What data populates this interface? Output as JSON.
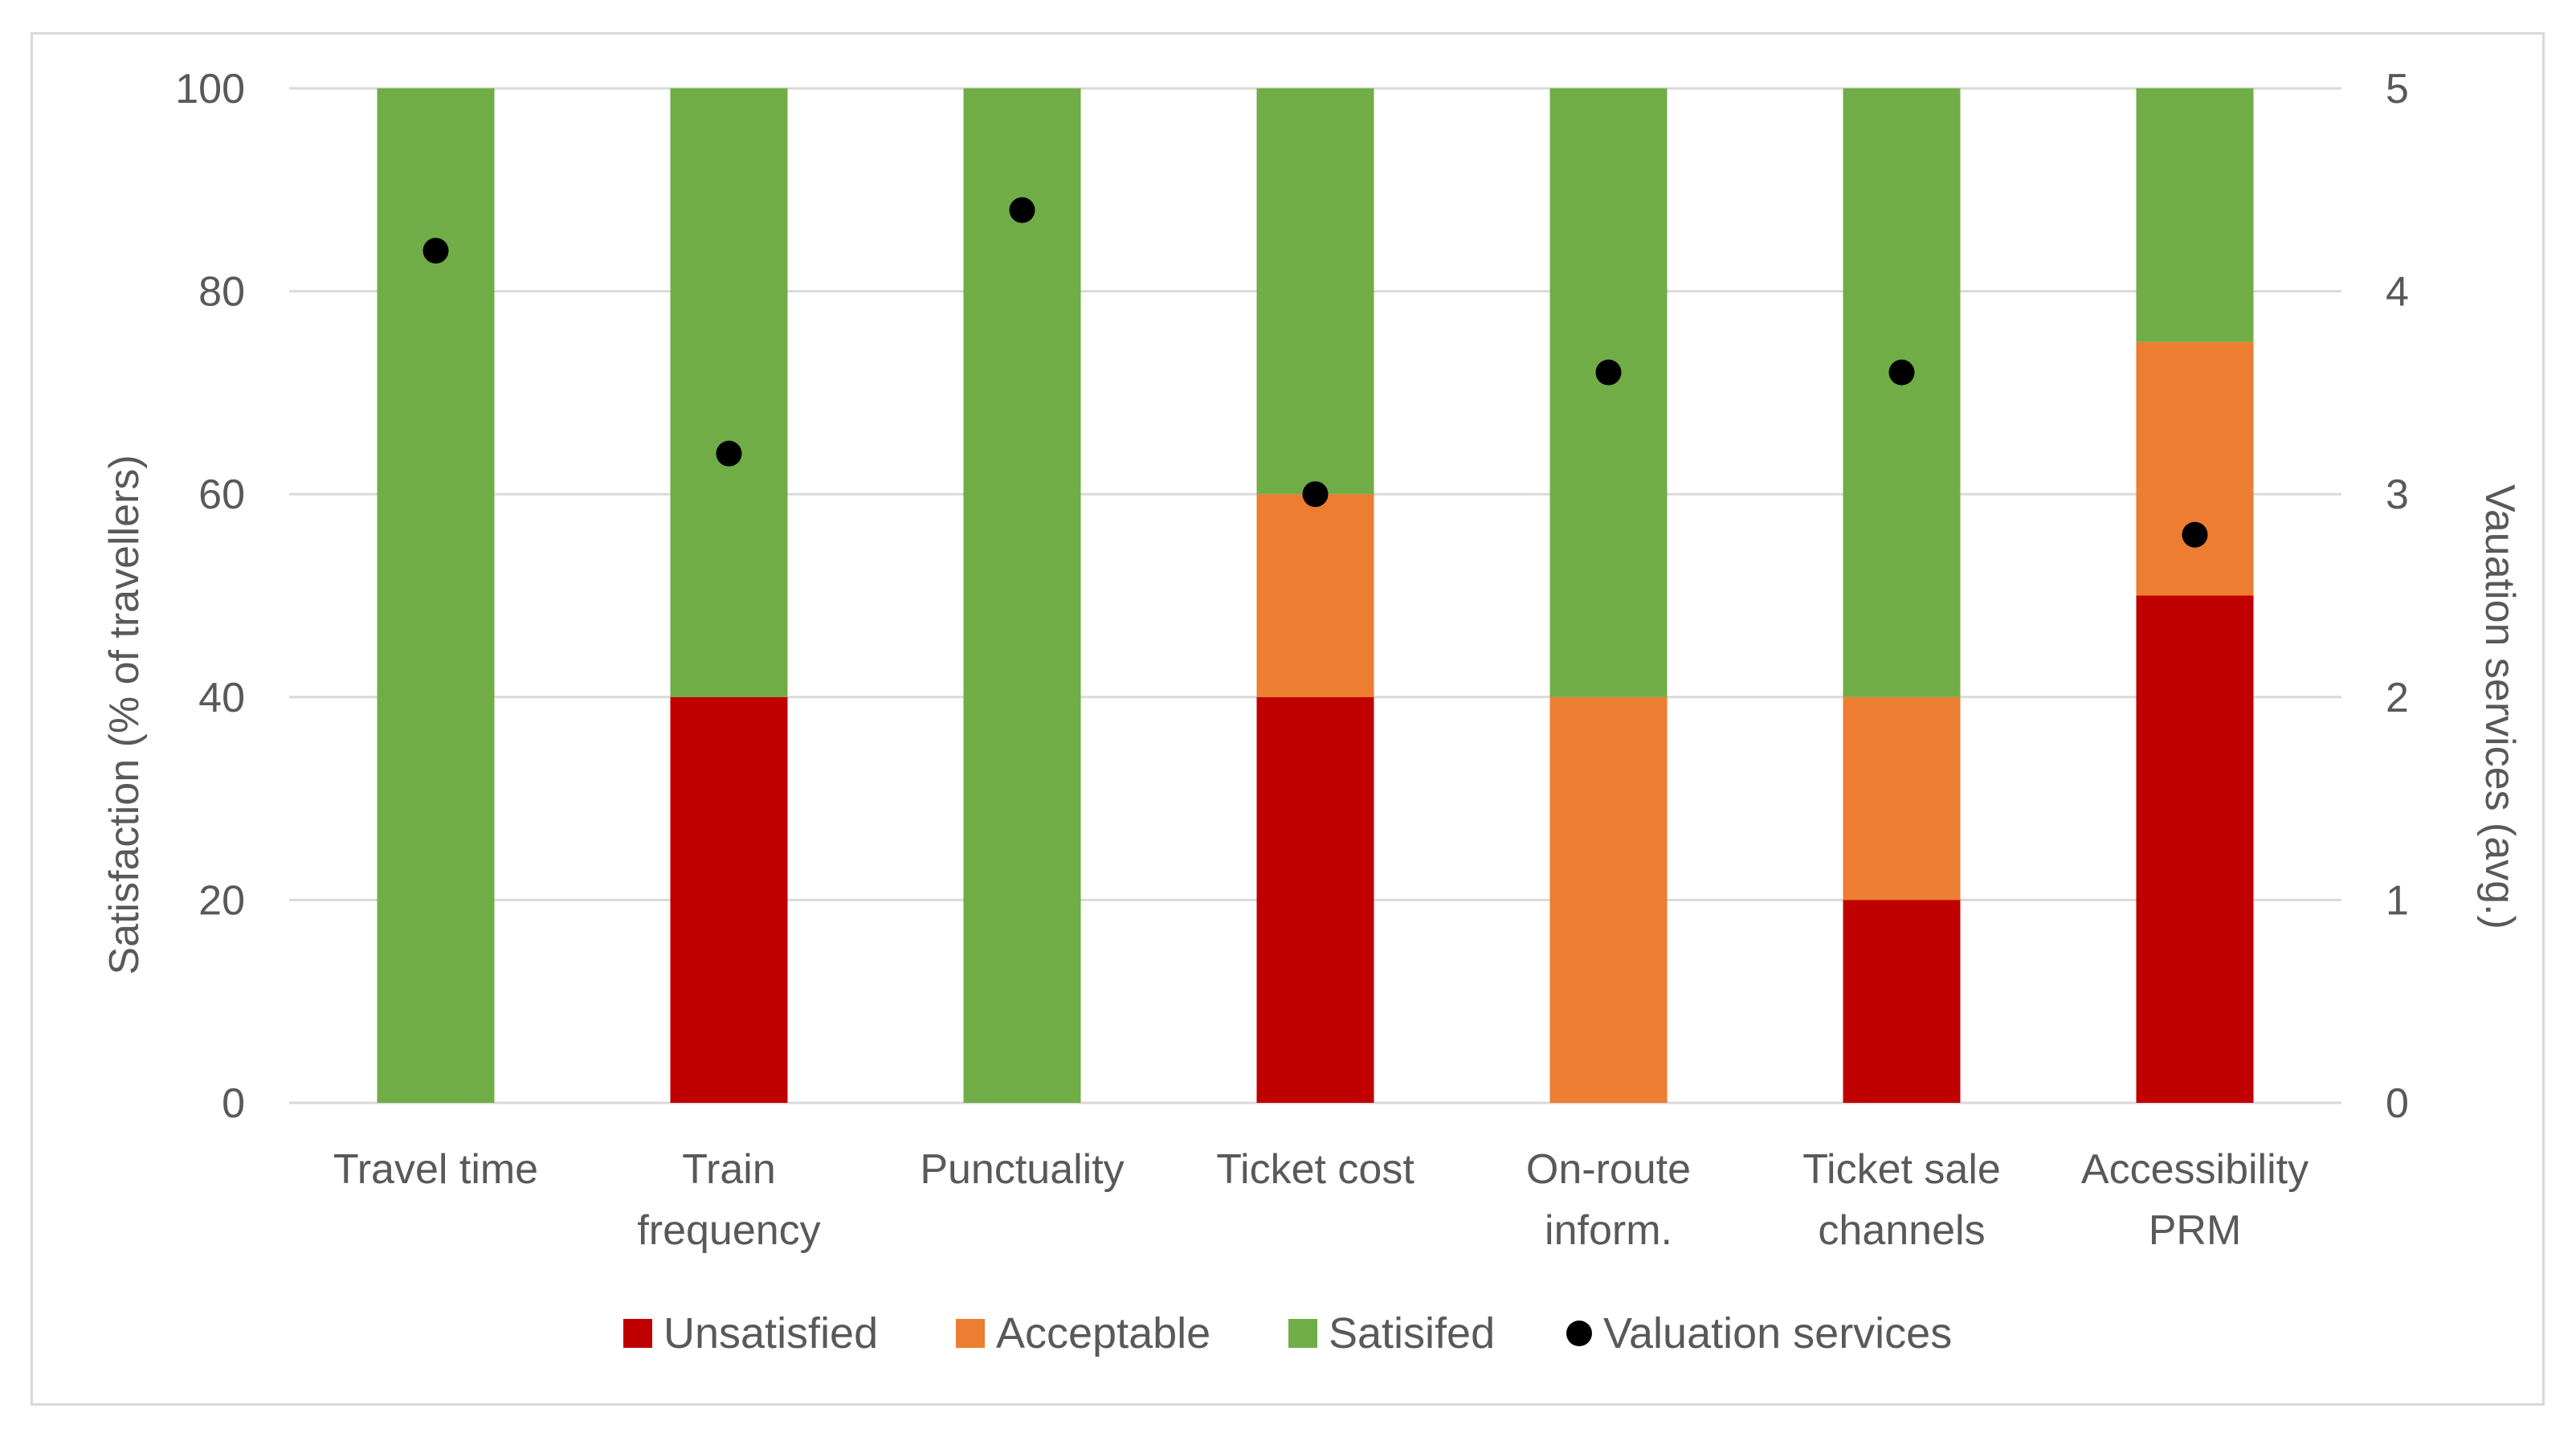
{
  "chart_data": {
    "type": "bar",
    "stacked": true,
    "categories": [
      [
        "Travel time"
      ],
      [
        "Train",
        "frequency"
      ],
      [
        "Punctuality"
      ],
      [
        "Ticket cost"
      ],
      [
        "On-route",
        "inform."
      ],
      [
        "Ticket sale",
        "channels"
      ],
      [
        "Accessibility",
        "PRM"
      ]
    ],
    "series": [
      {
        "name": "Unsatisfied",
        "color": "#c00000",
        "values": [
          0,
          40,
          0,
          40,
          0,
          20,
          50
        ]
      },
      {
        "name": "Acceptable",
        "color": "#ed7d31",
        "values": [
          0,
          0,
          0,
          20,
          40,
          20,
          25
        ]
      },
      {
        "name": "Satisifed",
        "color": "#70ad47",
        "values": [
          100,
          60,
          100,
          40,
          60,
          60,
          25
        ]
      }
    ],
    "secondary_series": {
      "name": "Valuation services",
      "type": "scatter",
      "color": "#000000",
      "values": [
        4.2,
        3.2,
        4.4,
        3.0,
        3.6,
        3.6,
        2.8
      ]
    },
    "ylabel": "Satisfaction (% of travellers)",
    "y2label": "Vauation services (avg.)",
    "ylim": [
      0,
      100
    ],
    "y2lim": [
      0,
      5
    ],
    "yticks": [
      "0",
      "20",
      "40",
      "60",
      "80",
      "100"
    ],
    "y2ticks": [
      "0",
      "1",
      "2",
      "3",
      "4",
      "5"
    ],
    "grid": true,
    "legend_position": "bottom"
  }
}
